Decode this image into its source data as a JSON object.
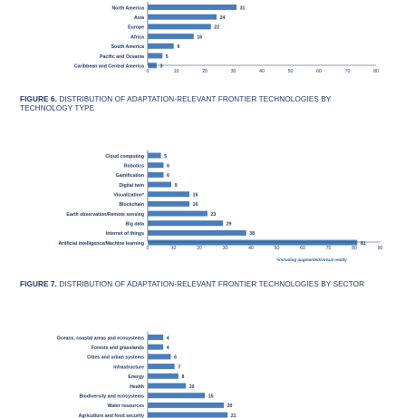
{
  "chart_data": [
    {
      "type": "bar",
      "orientation": "horizontal",
      "title": "",
      "categories": [
        "North America",
        "Asia",
        "Europe",
        "Africa",
        "South America",
        "Pacific and Oceania",
        "Caribbean and Central America"
      ],
      "values": [
        31,
        24,
        22,
        16,
        9,
        5,
        3
      ],
      "xlim": [
        0,
        80
      ],
      "xticks": [
        0,
        10,
        20,
        30,
        40,
        50,
        60,
        70,
        80
      ],
      "grid": false,
      "bar_color": "#4a7ebb"
    },
    {
      "type": "bar",
      "orientation": "horizontal",
      "figure_label": "FIGURE 6.",
      "title": "DISTRIBUTION OF ADAPTATION-RELEVANT FRONTIER TECHNOLOGIES BY TECHNOLOGY TYPE",
      "categories": [
        "Cloud computing",
        "Robotics",
        "Gamification",
        "Digital twin",
        "Visualization*",
        "Blockchain",
        "Earth observation/Remote sensing",
        "Big data",
        "Internet of things",
        "Artificial intelligence/Machine learning"
      ],
      "values": [
        5,
        6,
        6,
        9,
        16,
        16,
        23,
        29,
        38,
        81
      ],
      "xlim": [
        0,
        90
      ],
      "xticks": [
        0,
        10,
        20,
        30,
        40,
        50,
        60,
        70,
        80,
        90
      ],
      "note": "*including augmented/virtual reality",
      "grid": false,
      "bar_color": "#4a7ebb"
    },
    {
      "type": "bar",
      "orientation": "horizontal",
      "figure_label": "FIGURE 7.",
      "title": "DISTRIBUTION OF ADAPTATION-RELEVANT FRONTIER TECHNOLOGIES BY SECTOR",
      "categories": [
        "Oceans, coastal areas and ecosystems",
        "Forests and grasslands",
        "Cities and urban systems",
        "Infrastructure",
        "Energy",
        "Health",
        "Biodiversity and ecosystems",
        "Water resources",
        "Agriculture and food security"
      ],
      "values": [
        4,
        4,
        6,
        7,
        8,
        10,
        15,
        20,
        21
      ],
      "grid": false,
      "bar_color": "#4a7ebb"
    }
  ]
}
